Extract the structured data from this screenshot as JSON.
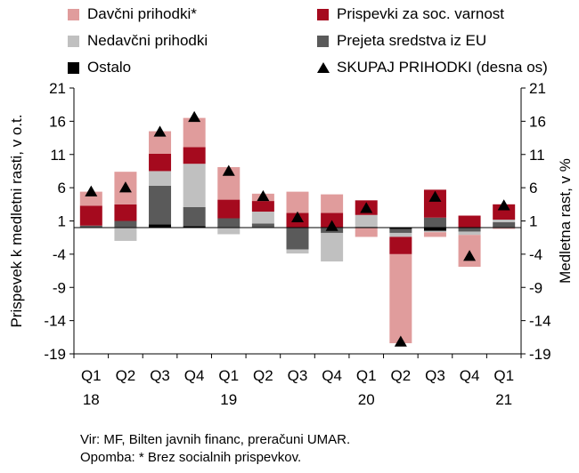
{
  "legend": [
    {
      "key": "davcni",
      "label": "Davčni prihodki*",
      "color": "#e09c9c"
    },
    {
      "key": "prispevki",
      "label": "Prispevki za soc. varnost",
      "color": "#a50a1e"
    },
    {
      "key": "nedavcni",
      "label": "Nedavčni prihodki",
      "color": "#c0c0c0"
    },
    {
      "key": "eu",
      "label": "Prejeta sredstva iz EU",
      "color": "#5a5a5a"
    },
    {
      "key": "ostalo",
      "label": "Ostalo",
      "color": "#000000"
    },
    {
      "key": "skupaj",
      "label": "SKUPAJ PRIHODKI (desna os)",
      "color": "#000000"
    }
  ],
  "chart_data": {
    "type": "bar",
    "stacked": true,
    "categories": [
      "Q1 18",
      "Q2 18",
      "Q3 18",
      "Q4 18",
      "Q1 19",
      "Q2 19",
      "Q3 19",
      "Q4 19",
      "Q1 20",
      "Q2 20",
      "Q3 20",
      "Q4 20",
      "Q1 21"
    ],
    "category_labels": [
      {
        "quarter": "Q1",
        "year": "18"
      },
      {
        "quarter": "Q2",
        "year": ""
      },
      {
        "quarter": "Q3",
        "year": ""
      },
      {
        "quarter": "Q4",
        "year": ""
      },
      {
        "quarter": "Q1",
        "year": "19"
      },
      {
        "quarter": "Q2",
        "year": ""
      },
      {
        "quarter": "Q3",
        "year": ""
      },
      {
        "quarter": "Q4",
        "year": ""
      },
      {
        "quarter": "Q1",
        "year": "20"
      },
      {
        "quarter": "Q2",
        "year": ""
      },
      {
        "quarter": "Q3",
        "year": ""
      },
      {
        "quarter": "Q4",
        "year": ""
      },
      {
        "quarter": "Q1",
        "year": "21"
      }
    ],
    "series": [
      {
        "key": "ostalo",
        "name": "Ostalo",
        "values": [
          0.1,
          0.1,
          0.5,
          0.2,
          0.1,
          0.1,
          0.0,
          -0.1,
          0.1,
          -0.2,
          -0.5,
          0.0,
          0.1
        ]
      },
      {
        "key": "eu",
        "name": "Prejeta sredstva iz EU",
        "values": [
          0.2,
          0.9,
          5.8,
          2.9,
          1.3,
          0.5,
          -3.3,
          -0.7,
          0.0,
          -0.6,
          1.5,
          -0.6,
          0.7
        ]
      },
      {
        "key": "nedavcni",
        "name": "Nedavčni prihodki",
        "values": [
          0.0,
          -2.0,
          2.2,
          6.5,
          -1.0,
          1.8,
          -0.6,
          -4.3,
          1.8,
          -0.6,
          -0.2,
          -0.5,
          0.4
        ]
      },
      {
        "key": "prispevki",
        "name": "Prispevki za soc. varnost",
        "values": [
          3.0,
          2.5,
          2.6,
          2.5,
          2.8,
          1.6,
          2.2,
          2.2,
          2.2,
          -2.6,
          4.2,
          1.8,
          2.3
        ]
      },
      {
        "key": "davcni",
        "name": "Davčni prihodki*",
        "values": [
          2.1,
          4.9,
          3.4,
          4.4,
          4.9,
          1.1,
          3.2,
          2.8,
          -1.4,
          -13.4,
          -0.7,
          -4.8,
          -0.2
        ]
      }
    ],
    "skupaj": {
      "name": "SKUPAJ PRIHODKI (desna os)",
      "values": [
        5.4,
        6.0,
        14.4,
        16.6,
        8.5,
        4.7,
        1.5,
        0.2,
        2.9,
        -17.2,
        4.6,
        -4.3,
        3.3
      ]
    },
    "y_left": {
      "label": "Prispevek k medletni rasti, v o.t.",
      "min": -19,
      "max": 21,
      "ticks": [
        21,
        16,
        11,
        6,
        1,
        -4,
        -9,
        -14,
        -19
      ]
    },
    "y_right": {
      "label": "Medletna rast, v %",
      "min": -19,
      "max": 21,
      "ticks": [
        21,
        16,
        11,
        6,
        1,
        -4,
        -9,
        -14,
        -19
      ]
    },
    "grid": false
  },
  "notes": {
    "source": "Vir: MF, Bilten javnih financ, preračuni UMAR.",
    "footnote": "Opomba: * Brez socialnih prispevkov."
  }
}
